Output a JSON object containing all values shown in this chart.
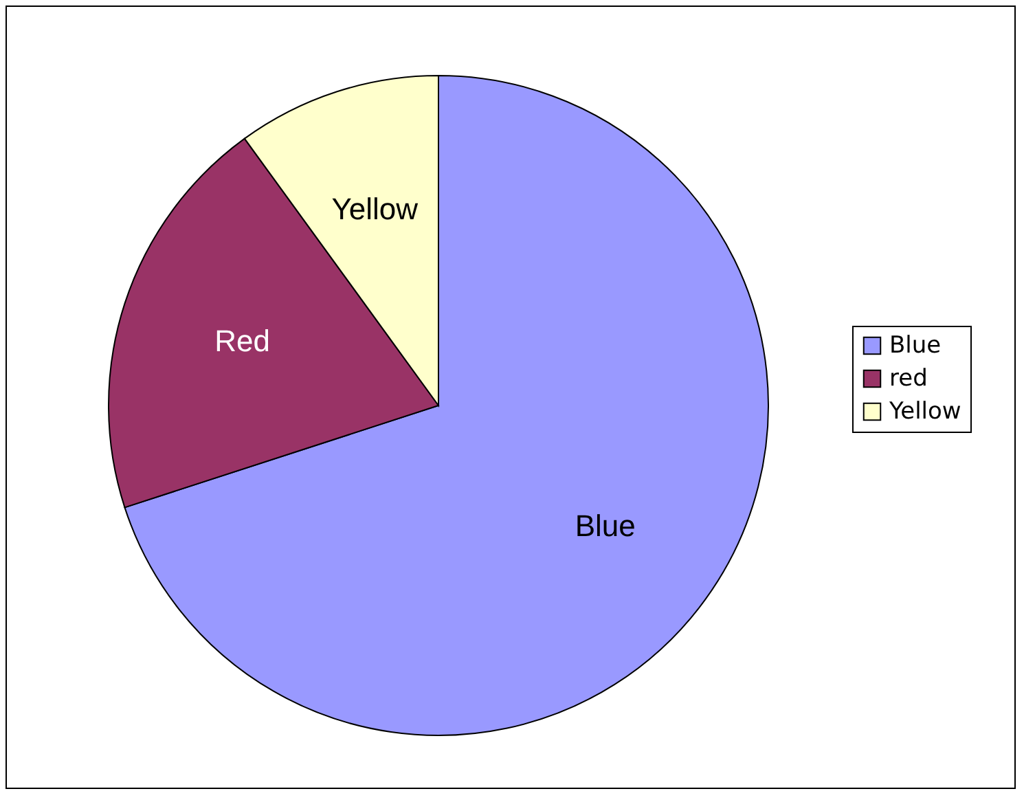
{
  "chart_data": {
    "type": "pie",
    "categories": [
      "Blue",
      "red",
      "Yellow"
    ],
    "values": [
      70,
      20,
      10
    ],
    "colors": [
      "#9999ff",
      "#993366",
      "#ffffcc"
    ],
    "value_labels": [
      "Blue",
      "Red",
      "Yellow"
    ],
    "legend": "right"
  }
}
